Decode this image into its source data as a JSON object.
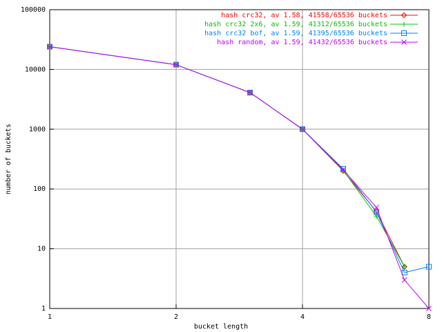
{
  "chart_data": {
    "type": "line",
    "xlabel": "bucket length",
    "ylabel": "number of buckets",
    "x": [
      1,
      2,
      3,
      4,
      5,
      6,
      7,
      8
    ],
    "series": [
      {
        "name": "hash crc32, av 1.58, 41558/65536 buckets",
        "color": "#ff0000",
        "marker": "diamond",
        "values": [
          24000,
          12000,
          4100,
          1000,
          200,
          42,
          5,
          null
        ]
      },
      {
        "name": "hash crc32 2x6, av 1.59, 41312/65536 buckets",
        "color": "#00c000",
        "marker": "plus",
        "values": [
          24000,
          12000,
          4100,
          1000,
          205,
          35,
          5,
          null
        ]
      },
      {
        "name": "hash crc32 bof, av 1.59, 41395/65536 buckets",
        "color": "#0080ff",
        "marker": "square",
        "values": [
          24000,
          12000,
          4100,
          1000,
          218,
          41,
          4,
          5
        ]
      },
      {
        "name": "hash random, av 1.59, 41432/65536 buckets",
        "color": "#c000ff",
        "marker": "cross",
        "values": [
          24000,
          12000,
          4100,
          1000,
          210,
          49,
          3,
          1
        ]
      }
    ],
    "xlim": [
      1,
      8
    ],
    "xticks": [
      1,
      2,
      4,
      8
    ],
    "xscale": "log",
    "ylim": [
      1,
      100000
    ],
    "yticks": [
      1,
      10,
      100,
      1000,
      10000,
      100000
    ],
    "yscale": "log",
    "grid": true,
    "legend": "top-right"
  }
}
